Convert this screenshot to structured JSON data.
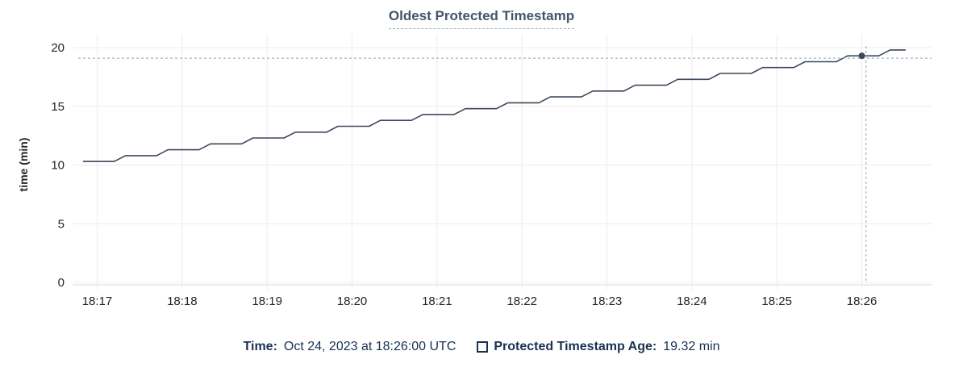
{
  "chart_data": {
    "type": "line",
    "title": "Oldest Protected Timestamp",
    "ylabel": "time (min)",
    "xlabel": "",
    "ylim": [
      0,
      20
    ],
    "y_ticks": [
      0,
      5,
      10,
      15,
      20
    ],
    "x_ticks": [
      {
        "t": 0,
        "label": "18:17"
      },
      {
        "t": 60,
        "label": "18:18"
      },
      {
        "t": 120,
        "label": "18:19"
      },
      {
        "t": 180,
        "label": "18:20"
      },
      {
        "t": 240,
        "label": "18:21"
      },
      {
        "t": 300,
        "label": "18:22"
      },
      {
        "t": 360,
        "label": "18:23"
      },
      {
        "t": 420,
        "label": "18:24"
      },
      {
        "t": 480,
        "label": "18:25"
      },
      {
        "t": 540,
        "label": "18:26"
      }
    ],
    "x_unit": "seconds since 18:17:00 UTC",
    "grid": true,
    "legend_position": "bottom",
    "series": [
      {
        "name": "Protected Timestamp Age",
        "unit": "min",
        "color": "#3c4859",
        "points": [
          [
            -10,
            10.3
          ],
          [
            12,
            10.3
          ],
          [
            20,
            10.8
          ],
          [
            42,
            10.8
          ],
          [
            50,
            11.3
          ],
          [
            72,
            11.3
          ],
          [
            80,
            11.8
          ],
          [
            102,
            11.8
          ],
          [
            110,
            12.3
          ],
          [
            132,
            12.3
          ],
          [
            140,
            12.8
          ],
          [
            162,
            12.8
          ],
          [
            170,
            13.3
          ],
          [
            192,
            13.3
          ],
          [
            200,
            13.8
          ],
          [
            222,
            13.8
          ],
          [
            230,
            14.3
          ],
          [
            252,
            14.3
          ],
          [
            260,
            14.8
          ],
          [
            282,
            14.8
          ],
          [
            290,
            15.3
          ],
          [
            312,
            15.3
          ],
          [
            320,
            15.8
          ],
          [
            342,
            15.8
          ],
          [
            350,
            16.3
          ],
          [
            372,
            16.3
          ],
          [
            380,
            16.8
          ],
          [
            402,
            16.8
          ],
          [
            410,
            17.3
          ],
          [
            432,
            17.3
          ],
          [
            440,
            17.8
          ],
          [
            462,
            17.8
          ],
          [
            470,
            18.3
          ],
          [
            492,
            18.3
          ],
          [
            500,
            18.8
          ],
          [
            522,
            18.8
          ],
          [
            530,
            19.3
          ],
          [
            552,
            19.3
          ],
          [
            560,
            19.8
          ],
          [
            571,
            19.8
          ]
        ]
      }
    ],
    "crosshair": {
      "t": 543,
      "value": 19.1
    },
    "hover_point": {
      "t": 540,
      "value": 19.3
    }
  },
  "legend": {
    "time_label": "Time:",
    "time_value": "Oct 24, 2023 at 18:26:00 UTC",
    "series_label": "Protected Timestamp Age:",
    "series_value": "19.32 min"
  },
  "colors": {
    "background": "#ffffff",
    "series": "#3c4859",
    "grid": "#ececec",
    "axis": "#d8d8d8",
    "tick_text": "#242424",
    "title_text": "#45556b",
    "title_underline": "#9fb0c4",
    "legend_text": "#1a3150",
    "crosshair": "#a6b5c5"
  }
}
